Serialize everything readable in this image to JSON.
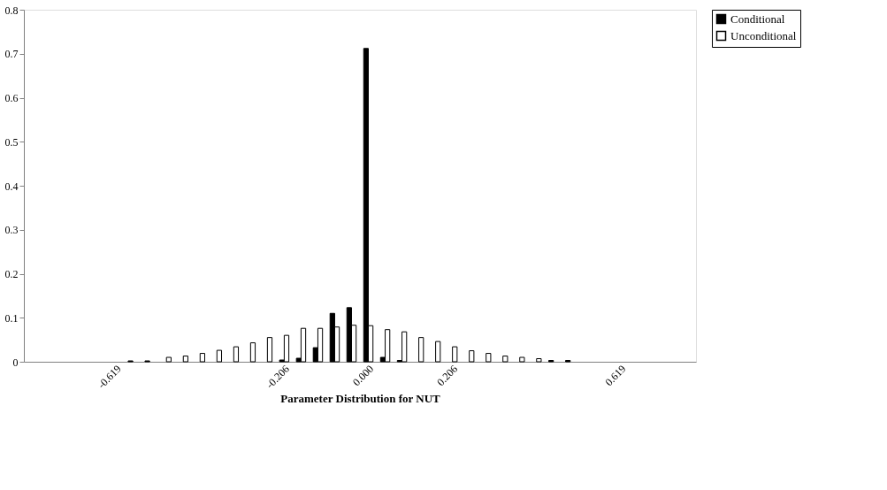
{
  "chart_data": {
    "type": "bar",
    "xlabel": "Parameter Distribution for NUT",
    "categories": [
      null,
      null,
      null,
      null,
      null,
      "-0.619",
      null,
      null,
      null,
      null,
      null,
      null,
      null,
      null,
      null,
      "-0.206",
      null,
      null,
      null,
      null,
      "0.000",
      null,
      null,
      null,
      null,
      "0.206",
      null,
      null,
      null,
      null,
      null,
      null,
      null,
      null,
      null,
      "0.619",
      null,
      null,
      null,
      null
    ],
    "series": [
      {
        "name": "Conditional",
        "color": "#000000",
        "values": [
          0,
          0,
          0,
          0,
          0,
          0,
          0.002,
          0.002,
          0,
          0,
          0,
          0,
          0,
          0,
          0,
          0.004,
          0.008,
          0.032,
          0.11,
          0.123,
          0.712,
          0.01,
          0.003,
          0,
          0,
          0,
          0,
          0,
          0,
          0,
          0,
          0.003,
          0.003,
          0,
          0,
          0,
          0,
          0,
          0,
          0
        ]
      },
      {
        "name": "Unconditional",
        "color": "#ffffff",
        "values": [
          0,
          0,
          0,
          0,
          0,
          0,
          0,
          0,
          0.01,
          0.013,
          0.019,
          0.026,
          0.034,
          0.043,
          0.055,
          0.06,
          0.076,
          0.076,
          0.079,
          0.083,
          0.082,
          0.073,
          0.068,
          0.055,
          0.046,
          0.034,
          0.025,
          0.019,
          0.013,
          0.01,
          0.007,
          0,
          0,
          0,
          0,
          0,
          0,
          0,
          0,
          0
        ]
      }
    ],
    "ylim": [
      0,
      0.8
    ],
    "yticks": [
      0,
      0.1,
      0.2,
      0.3,
      0.4,
      0.5,
      0.6,
      0.7,
      0.8
    ],
    "grid": false,
    "legend": "right"
  }
}
